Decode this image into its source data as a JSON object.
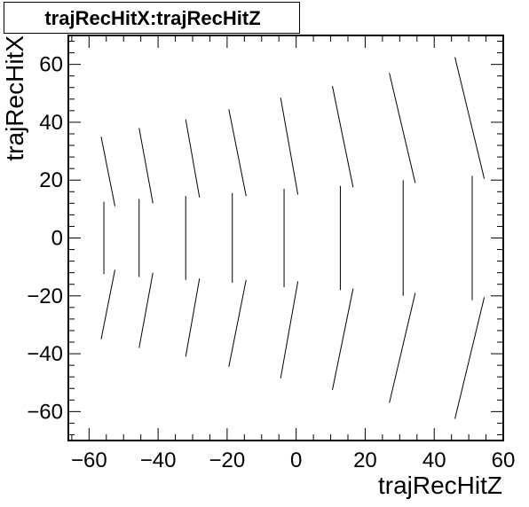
{
  "chart_data": {
    "type": "scatter",
    "title": "trajRecHitX:trajRecHitZ",
    "xlabel": "trajRecHitZ",
    "ylabel": "trajRecHitX",
    "xlim": [
      -66,
      60
    ],
    "ylim": [
      -70,
      70
    ],
    "x_ticks": [
      -60,
      -40,
      -20,
      0,
      20,
      40,
      60
    ],
    "x_tick_labels": [
      "−60",
      "−40",
      "−20",
      "0",
      "20",
      "40",
      "60"
    ],
    "y_ticks": [
      -60,
      -40,
      -20,
      0,
      20,
      40,
      60
    ],
    "y_tick_labels": [
      "−60",
      "−40",
      "−20",
      "0",
      "20",
      "40",
      "60"
    ],
    "grid": false,
    "segments": [
      {
        "z1": -55.7,
        "x1": -12.5,
        "z2": -55.7,
        "x2": 12.5
      },
      {
        "z1": -56.5,
        "x1": 35,
        "z2": -52.5,
        "x2": 11
      },
      {
        "z1": -52.5,
        "x1": -11,
        "z2": -56.5,
        "x2": -35
      },
      {
        "z1": -45.5,
        "x1": -13.5,
        "z2": -45.5,
        "x2": 13.5
      },
      {
        "z1": -45.5,
        "x1": 38,
        "z2": -41.5,
        "x2": 12
      },
      {
        "z1": -41.5,
        "x1": -12,
        "z2": -45.5,
        "x2": -38
      },
      {
        "z1": -32,
        "x1": -14.5,
        "z2": -32,
        "x2": 14.5
      },
      {
        "z1": -32,
        "x1": 41,
        "z2": -28,
        "x2": 14
      },
      {
        "z1": -28,
        "x1": -14,
        "z2": -32,
        "x2": -41
      },
      {
        "z1": -18.5,
        "x1": -15.5,
        "z2": -18.5,
        "x2": 15.5
      },
      {
        "z1": -19.5,
        "x1": 44.5,
        "z2": -14.5,
        "x2": 14.5
      },
      {
        "z1": -14.5,
        "x1": -14.5,
        "z2": -19.5,
        "x2": -44.5
      },
      {
        "z1": -3.5,
        "x1": -17,
        "z2": -3.5,
        "x2": 17
      },
      {
        "z1": -4.5,
        "x1": 48.5,
        "z2": 0.5,
        "x2": 15
      },
      {
        "z1": 0.5,
        "x1": -15,
        "z2": -4.5,
        "x2": -48.5
      },
      {
        "z1": 12.8,
        "x1": -18,
        "z2": 12.8,
        "x2": 18
      },
      {
        "z1": 10.5,
        "x1": 52.5,
        "z2": 16.5,
        "x2": 17.5
      },
      {
        "z1": 16.5,
        "x1": -17.5,
        "z2": 10.5,
        "x2": -52.5
      },
      {
        "z1": 31,
        "x1": -20,
        "z2": 31,
        "x2": 20
      },
      {
        "z1": 27,
        "x1": 57,
        "z2": 34.5,
        "x2": 19
      },
      {
        "z1": 34.5,
        "x1": -19,
        "z2": 27,
        "x2": -57
      },
      {
        "z1": 51,
        "x1": -21.5,
        "z2": 51,
        "x2": 21.5
      },
      {
        "z1": 46,
        "x1": 62.5,
        "z2": 54.5,
        "x2": 20.5
      },
      {
        "z1": 54.5,
        "x1": -20.5,
        "z2": 46,
        "x2": -62.5
      }
    ]
  }
}
